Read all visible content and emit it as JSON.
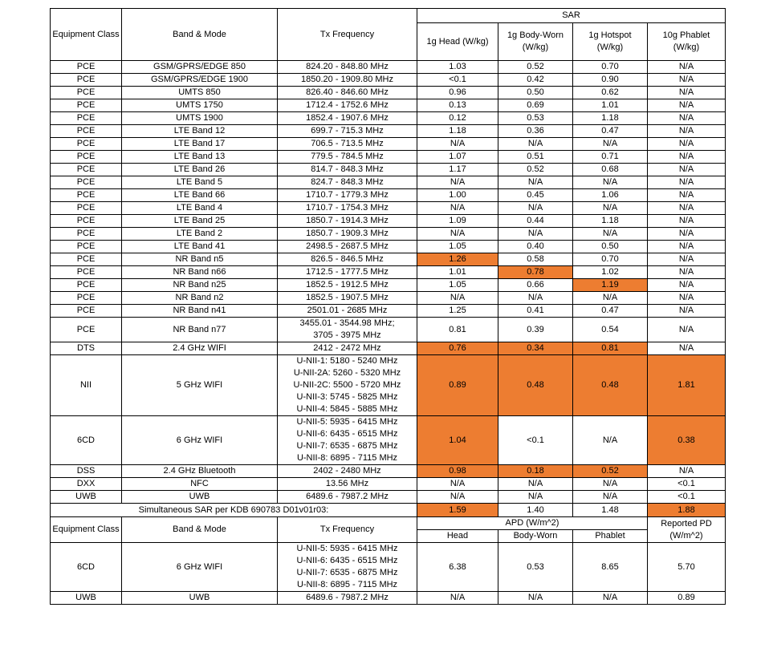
{
  "colors": {
    "highlight": "#ED7D31",
    "border": "#000000",
    "text": "#000000",
    "background": "#FFFFFF"
  },
  "sar_table": {
    "columns": {
      "equipment_class": "Equipment Class",
      "band_mode": "Band & Mode",
      "tx_frequency": "Tx Frequency",
      "sar_group": "SAR",
      "sar_subcolumns": [
        "1g Head (W/kg)",
        "1g Body-Worn (W/kg)",
        "1g Hotspot (W/kg)",
        "10g Phablet (W/kg)"
      ]
    },
    "rows": [
      {
        "equipment_class": "PCE",
        "band_mode": "GSM/GPRS/EDGE 850",
        "tx_frequency": [
          "824.20 - 848.80 MHz"
        ],
        "values": [
          "1.03",
          "0.52",
          "0.70",
          "N/A"
        ],
        "highlight": [
          false,
          false,
          false,
          false
        ]
      },
      {
        "equipment_class": "PCE",
        "band_mode": "GSM/GPRS/EDGE 1900",
        "tx_frequency": [
          "1850.20 - 1909.80 MHz"
        ],
        "values": [
          "<0.1",
          "0.42",
          "0.90",
          "N/A"
        ],
        "highlight": [
          false,
          false,
          false,
          false
        ]
      },
      {
        "equipment_class": "PCE",
        "band_mode": "UMTS 850",
        "tx_frequency": [
          "826.40 - 846.60 MHz"
        ],
        "values": [
          "0.96",
          "0.50",
          "0.62",
          "N/A"
        ],
        "highlight": [
          false,
          false,
          false,
          false
        ]
      },
      {
        "equipment_class": "PCE",
        "band_mode": "UMTS 1750",
        "tx_frequency": [
          "1712.4 - 1752.6 MHz"
        ],
        "values": [
          "0.13",
          "0.69",
          "1.01",
          "N/A"
        ],
        "highlight": [
          false,
          false,
          false,
          false
        ]
      },
      {
        "equipment_class": "PCE",
        "band_mode": "UMTS 1900",
        "tx_frequency": [
          "1852.4 - 1907.6 MHz"
        ],
        "values": [
          "0.12",
          "0.53",
          "1.18",
          "N/A"
        ],
        "highlight": [
          false,
          false,
          false,
          false
        ]
      },
      {
        "equipment_class": "PCE",
        "band_mode": "LTE Band 12",
        "tx_frequency": [
          "699.7 - 715.3 MHz"
        ],
        "values": [
          "1.18",
          "0.36",
          "0.47",
          "N/A"
        ],
        "highlight": [
          false,
          false,
          false,
          false
        ]
      },
      {
        "equipment_class": "PCE",
        "band_mode": "LTE Band 17",
        "tx_frequency": [
          "706.5 - 713.5 MHz"
        ],
        "values": [
          "N/A",
          "N/A",
          "N/A",
          "N/A"
        ],
        "highlight": [
          false,
          false,
          false,
          false
        ]
      },
      {
        "equipment_class": "PCE",
        "band_mode": "LTE Band 13",
        "tx_frequency": [
          "779.5 - 784.5 MHz"
        ],
        "values": [
          "1.07",
          "0.51",
          "0.71",
          "N/A"
        ],
        "highlight": [
          false,
          false,
          false,
          false
        ]
      },
      {
        "equipment_class": "PCE",
        "band_mode": "LTE Band 26",
        "tx_frequency": [
          "814.7 - 848.3 MHz"
        ],
        "values": [
          "1.17",
          "0.52",
          "0.68",
          "N/A"
        ],
        "highlight": [
          false,
          false,
          false,
          false
        ]
      },
      {
        "equipment_class": "PCE",
        "band_mode": "LTE Band 5",
        "tx_frequency": [
          "824.7 - 848.3 MHz"
        ],
        "values": [
          "N/A",
          "N/A",
          "N/A",
          "N/A"
        ],
        "highlight": [
          false,
          false,
          false,
          false
        ]
      },
      {
        "equipment_class": "PCE",
        "band_mode": "LTE Band 66",
        "tx_frequency": [
          "1710.7 - 1779.3 MHz"
        ],
        "values": [
          "1.00",
          "0.45",
          "1.06",
          "N/A"
        ],
        "highlight": [
          false,
          false,
          false,
          false
        ]
      },
      {
        "equipment_class": "PCE",
        "band_mode": "LTE Band 4",
        "tx_frequency": [
          "1710.7 - 1754.3 MHz"
        ],
        "values": [
          "N/A",
          "N/A",
          "N/A",
          "N/A"
        ],
        "highlight": [
          false,
          false,
          false,
          false
        ]
      },
      {
        "equipment_class": "PCE",
        "band_mode": "LTE Band 25",
        "tx_frequency": [
          "1850.7 - 1914.3 MHz"
        ],
        "values": [
          "1.09",
          "0.44",
          "1.18",
          "N/A"
        ],
        "highlight": [
          false,
          false,
          false,
          false
        ]
      },
      {
        "equipment_class": "PCE",
        "band_mode": "LTE Band 2",
        "tx_frequency": [
          "1850.7 - 1909.3 MHz"
        ],
        "values": [
          "N/A",
          "N/A",
          "N/A",
          "N/A"
        ],
        "highlight": [
          false,
          false,
          false,
          false
        ]
      },
      {
        "equipment_class": "PCE",
        "band_mode": "LTE Band 41",
        "tx_frequency": [
          "2498.5 - 2687.5 MHz"
        ],
        "values": [
          "1.05",
          "0.40",
          "0.50",
          "N/A"
        ],
        "highlight": [
          false,
          false,
          false,
          false
        ]
      },
      {
        "equipment_class": "PCE",
        "band_mode": "NR Band n5",
        "tx_frequency": [
          "826.5 - 846.5 MHz"
        ],
        "values": [
          "1.26",
          "0.58",
          "0.70",
          "N/A"
        ],
        "highlight": [
          true,
          false,
          false,
          false
        ]
      },
      {
        "equipment_class": "PCE",
        "band_mode": "NR Band n66",
        "tx_frequency": [
          "1712.5 - 1777.5 MHz"
        ],
        "values": [
          "1.01",
          "0.78",
          "1.02",
          "N/A"
        ],
        "highlight": [
          false,
          true,
          false,
          false
        ]
      },
      {
        "equipment_class": "PCE",
        "band_mode": "NR Band n25",
        "tx_frequency": [
          "1852.5 - 1912.5 MHz"
        ],
        "values": [
          "1.05",
          "0.66",
          "1.19",
          "N/A"
        ],
        "highlight": [
          false,
          false,
          true,
          false
        ]
      },
      {
        "equipment_class": "PCE",
        "band_mode": "NR Band n2",
        "tx_frequency": [
          "1852.5 - 1907.5 MHz"
        ],
        "values": [
          "N/A",
          "N/A",
          "N/A",
          "N/A"
        ],
        "highlight": [
          false,
          false,
          false,
          false
        ]
      },
      {
        "equipment_class": "PCE",
        "band_mode": "NR Band n41",
        "tx_frequency": [
          "2501.01 - 2685 MHz"
        ],
        "values": [
          "1.25",
          "0.41",
          "0.47",
          "N/A"
        ],
        "highlight": [
          false,
          false,
          false,
          false
        ]
      },
      {
        "equipment_class": "PCE",
        "band_mode": "NR Band n77",
        "tx_frequency": [
          "3455.01 - 3544.98 MHz;",
          "3705 - 3975 MHz"
        ],
        "values": [
          "0.81",
          "0.39",
          "0.54",
          "N/A"
        ],
        "highlight": [
          false,
          false,
          false,
          false
        ]
      },
      {
        "equipment_class": "DTS",
        "band_mode": "2.4 GHz WIFI",
        "tx_frequency": [
          "2412 - 2472 MHz"
        ],
        "values": [
          "0.76",
          "0.34",
          "0.81",
          "N/A"
        ],
        "highlight": [
          true,
          true,
          true,
          false
        ]
      },
      {
        "equipment_class": "NII",
        "band_mode": "5 GHz WIFI",
        "tx_frequency": [
          "U-NII-1: 5180 - 5240 MHz",
          "U-NII-2A: 5260 - 5320 MHz",
          "U-NII-2C: 5500 - 5720 MHz",
          "U-NII-3: 5745 - 5825 MHz",
          "U-NII-4: 5845 - 5885 MHz"
        ],
        "values": [
          "0.89",
          "0.48",
          "0.48",
          "1.81"
        ],
        "highlight": [
          true,
          true,
          true,
          true
        ]
      },
      {
        "equipment_class": "6CD",
        "band_mode": "6 GHz WIFI",
        "tx_frequency": [
          "U-NII-5: 5935 - 6415 MHz",
          "U-NII-6: 6435 - 6515 MHz",
          "U-NII-7: 6535 - 6875 MHz",
          "U-NII-8: 6895 - 7115 MHz"
        ],
        "values": [
          "1.04",
          "<0.1",
          "N/A",
          "0.38"
        ],
        "highlight": [
          true,
          false,
          false,
          true
        ]
      },
      {
        "equipment_class": "DSS",
        "band_mode": "2.4 GHz Bluetooth",
        "tx_frequency": [
          "2402 - 2480 MHz"
        ],
        "values": [
          "0.98",
          "0.18",
          "0.52",
          "N/A"
        ],
        "highlight": [
          true,
          true,
          true,
          false
        ]
      },
      {
        "equipment_class": "DXX",
        "band_mode": "NFC",
        "tx_frequency": [
          "13.56 MHz"
        ],
        "values": [
          "N/A",
          "N/A",
          "N/A",
          "<0.1"
        ],
        "highlight": [
          false,
          false,
          false,
          false
        ]
      },
      {
        "equipment_class": "UWB",
        "band_mode": "UWB",
        "tx_frequency": [
          "6489.6 - 7987.2 MHz"
        ],
        "values": [
          "N/A",
          "N/A",
          "N/A",
          "<0.1"
        ],
        "highlight": [
          false,
          false,
          false,
          false
        ]
      }
    ],
    "simultaneous_row": {
      "label": "Simultaneous SAR per KDB 690783 D01v01r03:",
      "values": [
        "1.59",
        "1.40",
        "1.48",
        "1.88"
      ],
      "highlight": [
        true,
        false,
        false,
        true
      ]
    }
  },
  "apd_table": {
    "columns": {
      "equipment_class": "Equipment Class",
      "band_mode": "Band & Mode",
      "tx_frequency": "Tx Frequency",
      "apd_group": "APD (W/m^2)",
      "apd_subcolumns": [
        "Head",
        "Body-Worn",
        "Phablet"
      ],
      "reported_pd": "Reported PD (W/m^2)"
    },
    "rows": [
      {
        "equipment_class": "6CD",
        "band_mode": "6 GHz WIFI",
        "tx_frequency": [
          "U-NII-5: 5935 - 6415 MHz",
          "U-NII-6: 6435 - 6515 MHz",
          "U-NII-7: 6535 - 6875 MHz",
          "U-NII-8: 6895 - 7115 MHz"
        ],
        "values": [
          "6.38",
          "0.53",
          "8.65",
          "5.70"
        ],
        "highlight": [
          false,
          false,
          false,
          false
        ]
      },
      {
        "equipment_class": "UWB",
        "band_mode": "UWB",
        "tx_frequency": [
          "6489.6 - 7987.2 MHz"
        ],
        "values": [
          "N/A",
          "N/A",
          "N/A",
          "0.89"
        ],
        "highlight": [
          false,
          false,
          false,
          false
        ]
      }
    ]
  }
}
